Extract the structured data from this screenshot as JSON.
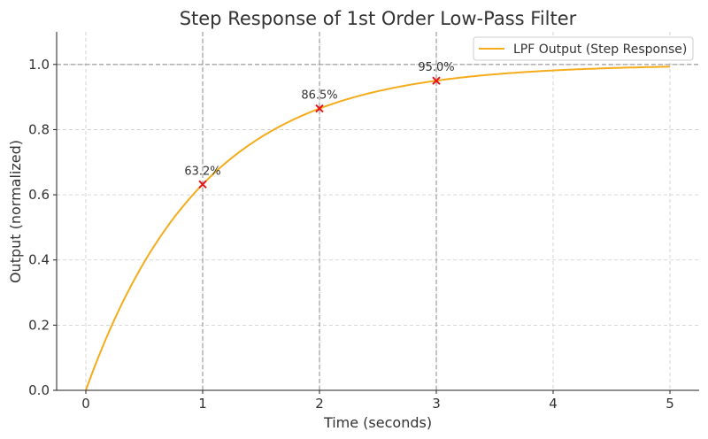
{
  "chart_data": {
    "type": "line",
    "title": "Step Response of 1st Order Low-Pass Filter",
    "xlabel": "Time (seconds)",
    "ylabel": "Output (normalized)",
    "xlim": [
      -0.25,
      5.25
    ],
    "ylim": [
      0,
      1.1
    ],
    "xticks": [
      0,
      1,
      2,
      3,
      4,
      5
    ],
    "xtick_labels": [
      "0",
      "1",
      "2",
      "3",
      "4",
      "5"
    ],
    "yticks": [
      0,
      0.2,
      0.4,
      0.6,
      0.8,
      1.0
    ],
    "ytick_labels": [
      "0.0",
      "0.2",
      "0.4",
      "0.6",
      "0.8",
      "1.0"
    ],
    "grid": true,
    "legend_placement": "top-right",
    "series": [
      {
        "name": "LPF Output (Step Response)",
        "color": "#f5ac1b",
        "function": "1 - exp(-t)",
        "x_range": [
          0,
          5
        ],
        "samples": 200
      }
    ],
    "reference_lines": {
      "vertical_x": [
        1,
        2,
        3
      ],
      "horizontal_y": [
        1.0
      ],
      "color": "#888888"
    },
    "markers": [
      {
        "x": 1,
        "y": 0.632,
        "label": "63.2%"
      },
      {
        "x": 2,
        "y": 0.865,
        "label": "86.5%"
      },
      {
        "x": 3,
        "y": 0.95,
        "label": "95.0%"
      }
    ],
    "marker_color": "#e8141a"
  }
}
